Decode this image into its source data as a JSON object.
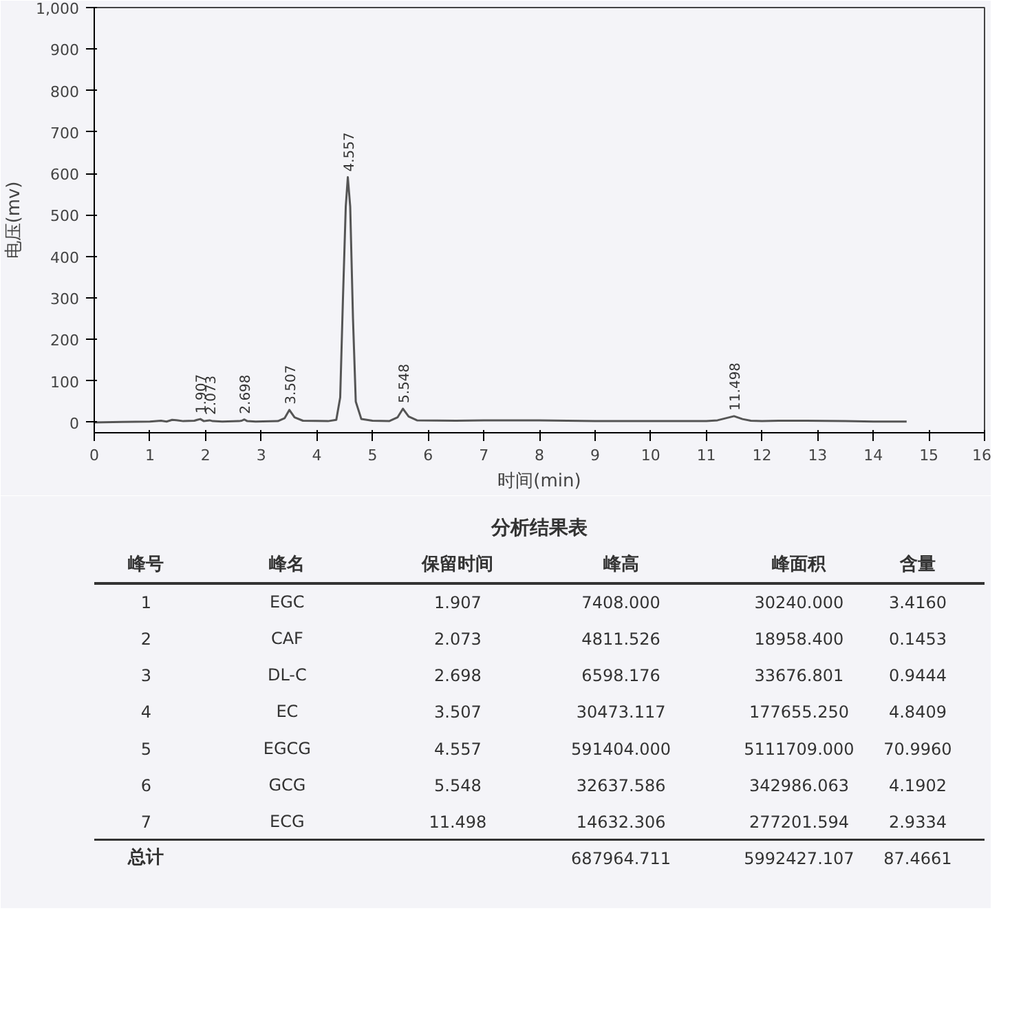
{
  "chart_data": {
    "type": "line",
    "xlabel": "时间(min)",
    "ylabel": "电压(mv)",
    "x": [
      0,
      0.5,
      1.0,
      1.2,
      1.3,
      1.4,
      1.5,
      1.6,
      1.8,
      1.85,
      1.907,
      1.97,
      2.02,
      2.073,
      2.13,
      2.3,
      2.6,
      2.65,
      2.698,
      2.75,
      2.9,
      3.3,
      3.42,
      3.507,
      3.6,
      3.75,
      4.2,
      4.35,
      4.42,
      4.47,
      4.52,
      4.557,
      4.6,
      4.65,
      4.7,
      4.8,
      5.0,
      5.3,
      5.45,
      5.548,
      5.65,
      5.8,
      6.5,
      7.0,
      8.0,
      8.5,
      9.0,
      10.0,
      11.0,
      11.2,
      11.35,
      11.498,
      11.65,
      11.8,
      12.0,
      12.3,
      12.8,
      13.5,
      14.0,
      14.6
    ],
    "series": [
      {
        "color": "#555555",
        "values": [
          0,
          1,
          2,
          4,
          2,
          6,
          5,
          3,
          4,
          6,
          8,
          3,
          4,
          5,
          3,
          2,
          3,
          4,
          7,
          3,
          2,
          3,
          10,
          30,
          12,
          4,
          3,
          6,
          60,
          300,
          520,
          591,
          520,
          250,
          50,
          8,
          4,
          3,
          12,
          33,
          14,
          5,
          4,
          5,
          5,
          4,
          3,
          3,
          3,
          5,
          10,
          15,
          8,
          4,
          3,
          4,
          4,
          3,
          2,
          2
        ]
      }
    ],
    "xlim": [
      0,
      16
    ],
    "xticks": [
      0,
      1,
      2,
      3,
      4,
      5,
      6,
      7,
      8,
      9,
      10,
      11,
      12,
      13,
      14,
      15,
      16
    ],
    "ylim": [
      -25,
      1000
    ],
    "yticks": [
      0,
      100,
      200,
      300,
      400,
      500,
      600,
      700,
      800,
      900,
      {
        "value": 1000,
        "label": "1,000"
      }
    ],
    "grid": false,
    "marker": "none",
    "line_style": "solid",
    "annotations": [
      {
        "text": "1.907",
        "x": 1.907,
        "y": 8
      },
      {
        "text": "2.073",
        "x": 2.073,
        "y": 5
      },
      {
        "text": "2.698",
        "x": 2.698,
        "y": 7
      },
      {
        "text": "3.507",
        "x": 3.507,
        "y": 30
      },
      {
        "text": "4.557",
        "x": 4.557,
        "y": 591
      },
      {
        "text": "5.548",
        "x": 5.548,
        "y": 33
      },
      {
        "text": "11.498",
        "x": 11.498,
        "y": 15
      },
      "分析结果表",
      "峰号",
      "峰名",
      "保留时间",
      "峰高",
      "峰面积",
      "含量",
      "1",
      "EGC",
      "1.907",
      "7408.000",
      "30240.000",
      "3.4160",
      "2",
      "CAF",
      "2.073",
      "4811.526",
      "18958.400",
      "0.1453",
      "3",
      "DL-C",
      "2.698",
      "6598.176",
      "33676.801",
      "0.9444",
      "4",
      "EC",
      "3.507",
      "30473.117",
      "177655.250",
      "4.8409",
      "5",
      "EGCG",
      "4.557",
      "591404.000",
      "5111709.000",
      "70.9960",
      "6",
      "GCG",
      "5.548",
      "32637.586",
      "342986.063",
      "4.1902",
      "7",
      "ECG",
      "11.498",
      "14632.306",
      "277201.594",
      "2.9334",
      "总计",
      "687964.711",
      "5992427.107",
      "87.4661"
    ]
  }
}
